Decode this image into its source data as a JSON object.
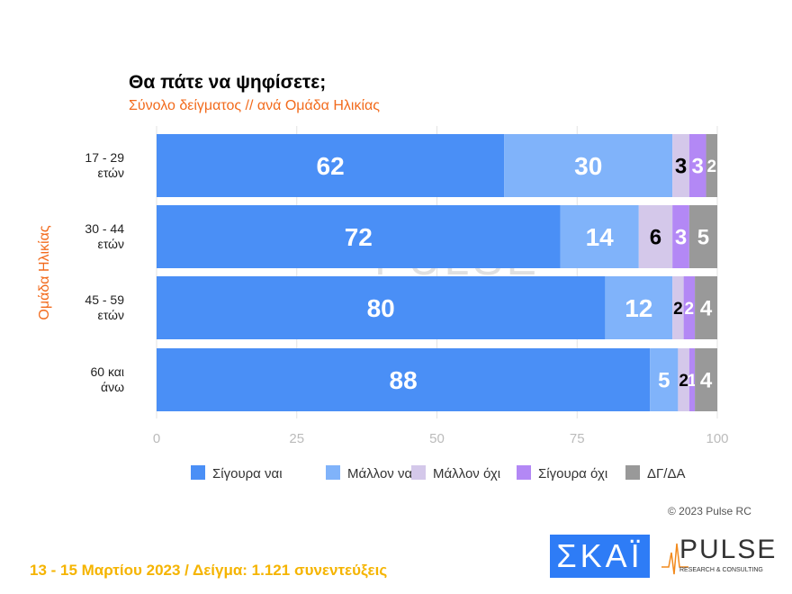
{
  "chart_data": {
    "type": "bar",
    "orientation": "horizontal",
    "stacked": true,
    "title": "Θα πάτε να ψηφίσετε;",
    "subtitle": "Σύνολο δείγματος // ανά Ομάδα Ηλικίας",
    "ylabel": "Ομάδα Ηλικίας",
    "xlabel": "",
    "xlim": [
      0,
      100
    ],
    "xticks": [
      0,
      25,
      50,
      75,
      100
    ],
    "grid": true,
    "legend_position": "bottom",
    "categories": [
      [
        "17 - 29",
        "ετών"
      ],
      [
        "30 - 44",
        "ετών"
      ],
      [
        "45 - 59",
        "ετών"
      ],
      [
        "60 και",
        "άνω"
      ]
    ],
    "series": [
      {
        "name": "Σίγουρα ναι",
        "color": "#4a8ff6",
        "label_color": "#ffffff",
        "values": [
          62,
          72,
          80,
          88
        ]
      },
      {
        "name": "Μάλλον ναι",
        "color": "#80b3fa",
        "label_color": "#ffffff",
        "values": [
          30,
          14,
          12,
          5
        ]
      },
      {
        "name": "Μάλλον όχι",
        "color": "#d4c8ea",
        "label_color": "#000000",
        "values": [
          3,
          6,
          2,
          2
        ]
      },
      {
        "name": "Σίγουρα όχι",
        "color": "#b388f5",
        "label_color": "#ffffff",
        "values": [
          3,
          3,
          2,
          1
        ]
      },
      {
        "name": "ΔΓ/ΔΑ",
        "color": "#999999",
        "label_color": "#ffffff",
        "values": [
          2,
          5,
          4,
          4
        ]
      }
    ]
  },
  "watermark": {
    "text": "PULSE",
    "sub": "RESEARCH & CONSULTING"
  },
  "copyright": "© 2023 Pulse RC",
  "footer": "13 - 15  Μαρτίου  2023  /  Δείγμα:  1.121 συνεντεύξεις",
  "logos": {
    "skai": "ΣΚΑΪ",
    "pulse": "PULSE",
    "pulse_sub": "RESEARCH & CONSULTING"
  }
}
